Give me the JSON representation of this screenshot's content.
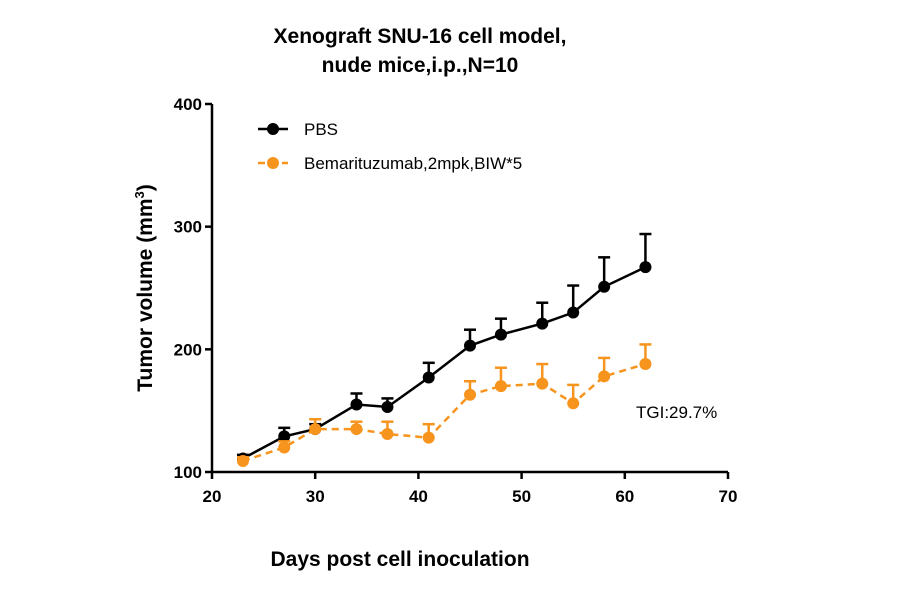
{
  "chart_data": {
    "type": "line",
    "title_lines": [
      "Xenograft SNU-16 cell model,",
      "nude mice,i.p.,N=10"
    ],
    "xlabel": "Days post cell inoculation",
    "ylabel": "Tumor volume (mm",
    "ylabel_sup": "3",
    "ylabel_close": ")",
    "xlim": [
      20,
      70
    ],
    "ylim": [
      100,
      400
    ],
    "xticks": [
      20,
      30,
      40,
      50,
      60,
      70
    ],
    "yticks": [
      100,
      200,
      300,
      400
    ],
    "grid": false,
    "legend_placement": "top-left",
    "annotation": "TGI:29.7%",
    "series": [
      {
        "name": "PBS",
        "color": "#000000",
        "line_style": "solid",
        "marker": "circle",
        "x": [
          23,
          27,
          30,
          34,
          37,
          41,
          45,
          48,
          52,
          55,
          58,
          62
        ],
        "y": [
          111,
          129,
          135,
          155,
          153,
          177,
          203,
          212,
          221,
          230,
          251,
          267
        ],
        "error_upper": [
          3,
          7,
          4,
          9,
          7,
          12,
          13,
          13,
          17,
          22,
          24,
          27
        ]
      },
      {
        "name": "Bemarituzumab,2mpk,BIW*5",
        "color": "#F7941D",
        "line_style": "dashed",
        "marker": "circle",
        "x": [
          23,
          27,
          30,
          34,
          37,
          41,
          45,
          48,
          52,
          55,
          58,
          62
        ],
        "y": [
          109,
          120,
          135,
          135,
          131,
          128,
          163,
          170,
          172,
          156,
          178,
          188
        ],
        "error_upper": [
          3,
          5,
          8,
          6,
          10,
          11,
          11,
          15,
          16,
          15,
          15,
          16
        ]
      }
    ]
  }
}
